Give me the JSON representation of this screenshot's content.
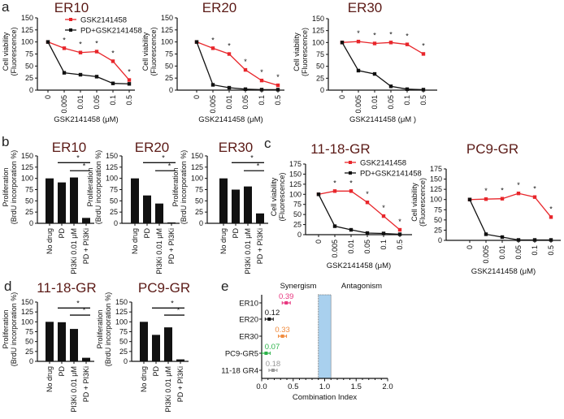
{
  "panel_labels": [
    "a",
    "b",
    "c",
    "d",
    "e"
  ],
  "chart_data": [
    {
      "panel": "a",
      "type": "line",
      "title": "ER10",
      "xlabel": "GSK2141458 (μM)",
      "ylabel": [
        "Cell viability",
        "(Fluorescence)"
      ],
      "categories": [
        "0",
        "0.005",
        "0.01",
        "0.05",
        "0.1",
        "0.5"
      ],
      "ylim": [
        0,
        150
      ],
      "yticks": [
        0,
        25,
        50,
        75,
        100,
        125,
        150
      ],
      "series": [
        {
          "name": "GSK2141458",
          "color": "#e8262b",
          "values": [
            100,
            87,
            78,
            80,
            60,
            21
          ]
        },
        {
          "name": "PD+GSK2141458",
          "color": "#111111",
          "values": [
            100,
            36,
            32,
            28,
            14,
            13
          ]
        }
      ],
      "significance": [
        false,
        true,
        true,
        true,
        true,
        true
      ],
      "star": "*",
      "legend": "top-right"
    },
    {
      "panel": "a",
      "type": "line",
      "title": "ER20",
      "xlabel": "GSK2141458 (μM)",
      "ylabel": [
        "Cell viability",
        "(Fluorescence)"
      ],
      "categories": [
        "0",
        "0.005",
        "0.01",
        "0.05",
        "0.1",
        "0.5"
      ],
      "ylim": [
        0,
        150
      ],
      "yticks": [
        0,
        25,
        50,
        75,
        100,
        125,
        150
      ],
      "series": [
        {
          "name": "GSK2141458",
          "color": "#e8262b",
          "values": [
            100,
            87,
            75,
            42,
            20,
            10
          ]
        },
        {
          "name": "PD+GSK2141458",
          "color": "#111111",
          "values": [
            100,
            11,
            5,
            2,
            1,
            1
          ]
        }
      ],
      "significance": [
        false,
        true,
        true,
        true,
        true,
        true
      ],
      "star": "*"
    },
    {
      "panel": "a",
      "type": "line",
      "title": "ER30",
      "xlabel": "GSK2141458 (μM )",
      "ylabel": [
        "Cell viability",
        "(Fluorescence)"
      ],
      "categories": [
        "0",
        "0.005",
        "0.01",
        "0.05",
        "0.1",
        "0.5"
      ],
      "ylim": [
        0,
        150
      ],
      "yticks": [
        0,
        25,
        50,
        75,
        100,
        125,
        150
      ],
      "series": [
        {
          "name": "GSK2141458",
          "color": "#e8262b",
          "values": [
            100,
            102,
            98,
            100,
            96,
            76
          ]
        },
        {
          "name": "PD+GSK2141458",
          "color": "#111111",
          "values": [
            100,
            41,
            34,
            8,
            2,
            1
          ]
        }
      ],
      "significance": [
        false,
        true,
        true,
        true,
        true,
        true
      ],
      "star": "*"
    },
    {
      "panel": "b",
      "type": "bar",
      "title": "ER10",
      "ylabel": [
        "Proliferation",
        "(BrdU incorporation %)"
      ],
      "categories": [
        "No drug",
        "PD",
        "PI3Ki 0.01 μM",
        "PD + PI3Ki"
      ],
      "values": [
        100,
        91,
        102,
        12
      ],
      "ylim": [
        0,
        150
      ],
      "yticks": [
        0,
        25,
        50,
        75,
        100,
        125,
        150
      ],
      "star": "*"
    },
    {
      "panel": "b",
      "type": "bar",
      "title": "ER20",
      "ylabel": [
        "Proliferation",
        "(BrdU incorporation %)"
      ],
      "categories": [
        "No drug",
        "PD",
        "PI3Ki 0.01 μM",
        "PD + PI3Ki"
      ],
      "values": [
        100,
        62,
        44,
        2
      ],
      "ylim": [
        0,
        150
      ],
      "yticks": [
        0,
        25,
        50,
        75,
        100,
        125,
        150
      ],
      "star": "*"
    },
    {
      "panel": "b",
      "type": "bar",
      "title": "ER30",
      "ylabel": [
        "Proliferation",
        "(BrdU incorporation %)"
      ],
      "categories": [
        "No drug",
        "PD",
        "PI3Ki 0.01 μM",
        "PD + PI3Ki"
      ],
      "values": [
        100,
        75,
        82,
        22
      ],
      "ylim": [
        0,
        150
      ],
      "yticks": [
        0,
        25,
        50,
        75,
        100,
        125,
        150
      ],
      "star": "*"
    },
    {
      "panel": "c",
      "type": "line",
      "title": "11-18-GR",
      "xlabel": "GSK2141458 (μM)",
      "ylabel": [
        "Cell viability",
        "(Fluorescence)"
      ],
      "categories": [
        "0",
        "0.005",
        "0.01",
        "0.05",
        "0.1",
        "0.5"
      ],
      "ylim": [
        0,
        175
      ],
      "yticks": [
        0,
        25,
        50,
        75,
        100,
        125,
        150,
        175
      ],
      "series": [
        {
          "name": "GSK2141458",
          "color": "#e8262b",
          "values": [
            100,
            108,
            108,
            80,
            46,
            12
          ]
        },
        {
          "name": "PD+GSK2141458",
          "color": "#111111",
          "values": [
            100,
            21,
            12,
            4,
            3,
            1
          ]
        }
      ],
      "significance": [
        false,
        true,
        true,
        true,
        true,
        true
      ],
      "star": "*",
      "legend": "top-right"
    },
    {
      "panel": "c",
      "type": "line",
      "title": "PC9-GR",
      "xlabel": "GSK2141458 (μM)",
      "ylabel": [
        "Cell viability",
        "(Fluorescence)"
      ],
      "categories": [
        "0",
        "0.005",
        "0.01",
        "0.05",
        "0.1",
        "0.5"
      ],
      "ylim": [
        0,
        175
      ],
      "yticks": [
        0,
        25,
        50,
        75,
        100,
        125,
        150,
        175
      ],
      "series": [
        {
          "name": "GSK2141458",
          "color": "#e8262b",
          "values": [
            100,
            101,
            102,
            115,
            106,
            57
          ]
        },
        {
          "name": "PD+GSK2141458",
          "color": "#111111",
          "values": [
            100,
            15,
            8,
            1,
            1,
            1
          ]
        }
      ],
      "significance": [
        false,
        true,
        true,
        true,
        true,
        true
      ],
      "star": "*"
    },
    {
      "panel": "d",
      "type": "bar",
      "title": "11-18-GR",
      "ylabel": [
        "Proliferation",
        "(BrdU incorporation %)"
      ],
      "categories": [
        "No drug",
        "PD",
        "PI3Ki 0.01 μM",
        "PD + PI3Ki"
      ],
      "values": [
        100,
        99,
        82,
        9
      ],
      "ylim": [
        0,
        150
      ],
      "yticks": [
        0,
        25,
        50,
        75,
        100,
        125,
        150
      ],
      "star": "*"
    },
    {
      "panel": "d",
      "type": "bar",
      "title": "PC9-GR",
      "ylabel": [
        "Proliferation",
        "(BrdU incorporation %)"
      ],
      "categories": [
        "No drug",
        "PD",
        "PI3Ki 0.01 μM",
        "PD + PI3Ki"
      ],
      "values": [
        100,
        67,
        86,
        5
      ],
      "ylim": [
        0,
        150
      ],
      "yticks": [
        0,
        25,
        50,
        75,
        100,
        125,
        150
      ],
      "star": "*"
    },
    {
      "panel": "e",
      "type": "scatter",
      "xlabel": "Combination  Index",
      "xlim": [
        0,
        2
      ],
      "xticks": [
        "0.0",
        "0.5",
        "1.0",
        "1.5",
        "2.0"
      ],
      "regions": [
        "Synergism",
        "Antagonism"
      ],
      "additivity_band": [
        0.9,
        1.1
      ],
      "categories": [
        "ER10",
        "ER20",
        "ER30",
        "PC9-GR5",
        "11-18 GR4"
      ],
      "values": [
        0.39,
        0.12,
        0.33,
        0.07,
        0.18
      ],
      "labels": [
        "0.39",
        "0.12",
        "0.33",
        "0.07",
        "0.18"
      ],
      "colors": [
        "#e8367f",
        "#111111",
        "#f08a3c",
        "#2db34a",
        "#999999"
      ]
    }
  ]
}
